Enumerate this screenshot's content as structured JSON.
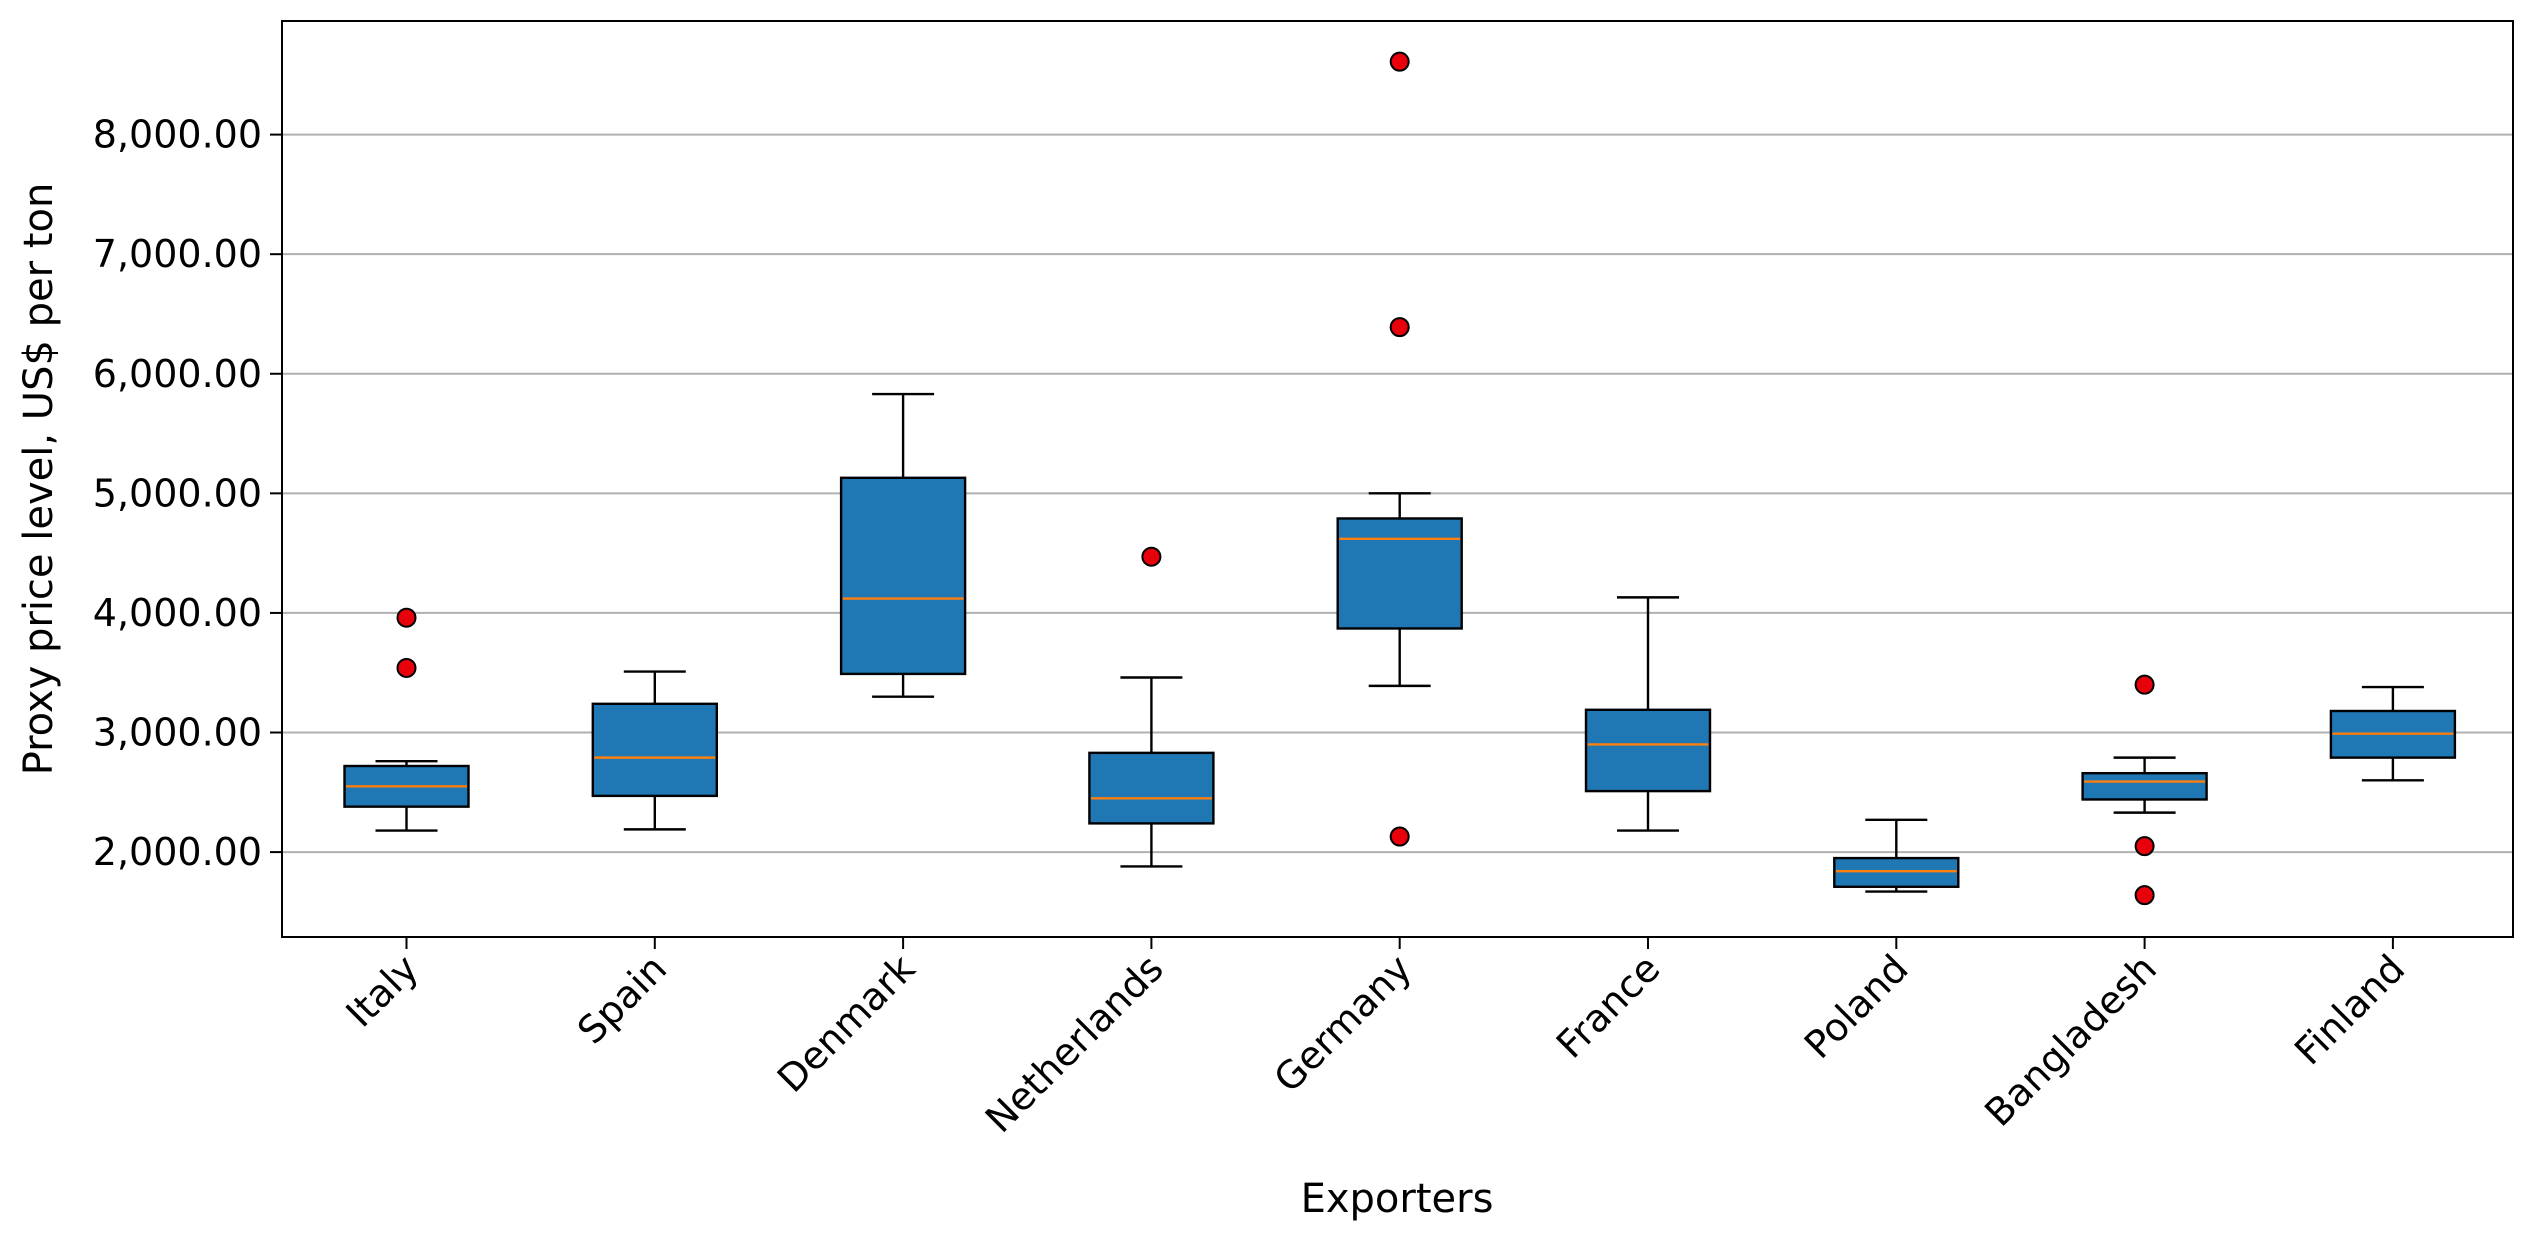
{
  "chart_data": {
    "type": "boxplot",
    "title": "",
    "xlabel": "Exporters",
    "ylabel": "Proxy price level, US$ per ton",
    "categories": [
      "Italy",
      "Spain",
      "Denmark",
      "Netherlands",
      "Germany",
      "France",
      "Poland",
      "Bangladesh",
      "Finland"
    ],
    "boxes": [
      {
        "category": "Italy",
        "whisker_low": 2180,
        "q1": 2380,
        "median": 2550,
        "q3": 2720,
        "whisker_high": 2760,
        "outliers": [
          3960,
          3540
        ]
      },
      {
        "category": "Spain",
        "whisker_low": 2190,
        "q1": 2470,
        "median": 2790,
        "q3": 3240,
        "whisker_high": 3510,
        "outliers": []
      },
      {
        "category": "Denmark",
        "whisker_low": 3300,
        "q1": 3490,
        "median": 4120,
        "q3": 5130,
        "whisker_high": 5830,
        "outliers": []
      },
      {
        "category": "Netherlands",
        "whisker_low": 1880,
        "q1": 2240,
        "median": 2450,
        "q3": 2830,
        "whisker_high": 3460,
        "outliers": [
          4470
        ]
      },
      {
        "category": "Germany",
        "whisker_low": 3390,
        "q1": 3870,
        "median": 4620,
        "q3": 4790,
        "whisker_high": 5000,
        "outliers": [
          8610,
          6390,
          2130
        ]
      },
      {
        "category": "France",
        "whisker_low": 2180,
        "q1": 2510,
        "median": 2900,
        "q3": 3190,
        "whisker_high": 4130,
        "outliers": []
      },
      {
        "category": "Poland",
        "whisker_low": 1670,
        "q1": 1710,
        "median": 1840,
        "q3": 1950,
        "whisker_high": 2270,
        "outliers": []
      },
      {
        "category": "Bangladesh",
        "whisker_low": 2330,
        "q1": 2440,
        "median": 2590,
        "q3": 2660,
        "whisker_high": 2790,
        "outliers": [
          3400,
          2050,
          1640
        ]
      },
      {
        "category": "Finland",
        "whisker_low": 2600,
        "q1": 2790,
        "median": 2990,
        "q3": 3180,
        "whisker_high": 3380,
        "outliers": []
      }
    ],
    "yticks": [
      2000,
      3000,
      4000,
      5000,
      6000,
      7000,
      8000
    ],
    "ytick_labels": [
      "2,000.00",
      "3,000.00",
      "4,000.00",
      "5,000.00",
      "6,000.00",
      "7,000.00",
      "8,000.00"
    ],
    "ylim": [
      1290,
      8950
    ],
    "grid": "horizontal",
    "legend": "none",
    "colors": {
      "box_fill": "#1f77b4",
      "median_line": "#ff7f0e",
      "outlier_fill": "#e8000b",
      "grid": "#b0b0b0"
    }
  }
}
